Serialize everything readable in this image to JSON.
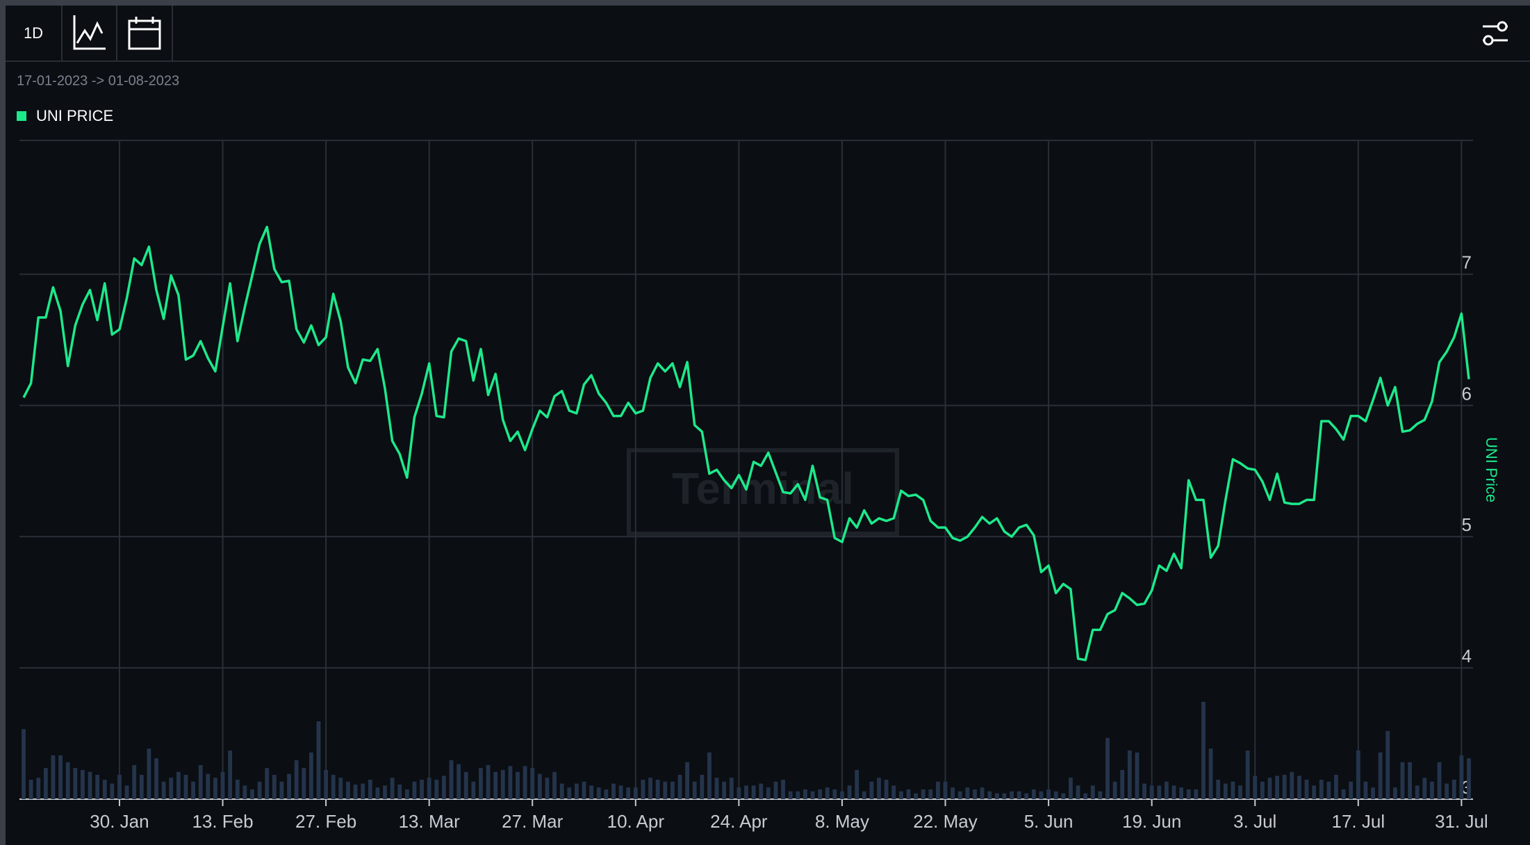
{
  "toolbar": {
    "interval": "1D"
  },
  "date_range": "17-01-2023 -> 01-08-2023",
  "chart_data": {
    "type": "line",
    "watermark": "Terminal",
    "y_axis_label": "UNI Price",
    "grid": true,
    "xlim": [
      "2023-01-17",
      "2023-08-01"
    ],
    "ylim": [
      3,
      8.02
    ],
    "yticks": [
      3,
      4,
      5,
      6,
      7
    ],
    "xticks": [
      {
        "value": "2023-01-30",
        "label": "30. Jan"
      },
      {
        "value": "2023-02-13",
        "label": "13. Feb"
      },
      {
        "value": "2023-02-27",
        "label": "27. Feb"
      },
      {
        "value": "2023-03-13",
        "label": "13. Mar"
      },
      {
        "value": "2023-03-27",
        "label": "27. Mar"
      },
      {
        "value": "2023-04-10",
        "label": "10. Apr"
      },
      {
        "value": "2023-04-24",
        "label": "24. Apr"
      },
      {
        "value": "2023-05-08",
        "label": "8. May"
      },
      {
        "value": "2023-05-22",
        "label": "22. May"
      },
      {
        "value": "2023-06-05",
        "label": "5. Jun"
      },
      {
        "value": "2023-06-19",
        "label": "19. Jun"
      },
      {
        "value": "2023-07-03",
        "label": "3. Jul"
      },
      {
        "value": "2023-07-17",
        "label": "17. Jul"
      },
      {
        "value": "2023-07-31",
        "label": "31. Jul"
      }
    ],
    "x": [
      "2023-01-17",
      "2023-01-18",
      "2023-01-19",
      "2023-01-20",
      "2023-01-21",
      "2023-01-22",
      "2023-01-23",
      "2023-01-24",
      "2023-01-25",
      "2023-01-26",
      "2023-01-27",
      "2023-01-28",
      "2023-01-29",
      "2023-01-30",
      "2023-01-31",
      "2023-02-01",
      "2023-02-02",
      "2023-02-03",
      "2023-02-04",
      "2023-02-05",
      "2023-02-06",
      "2023-02-07",
      "2023-02-08",
      "2023-02-09",
      "2023-02-10",
      "2023-02-11",
      "2023-02-12",
      "2023-02-13",
      "2023-02-14",
      "2023-02-15",
      "2023-02-16",
      "2023-02-17",
      "2023-02-18",
      "2023-02-19",
      "2023-02-20",
      "2023-02-21",
      "2023-02-22",
      "2023-02-23",
      "2023-02-24",
      "2023-02-25",
      "2023-02-26",
      "2023-02-27",
      "2023-02-28",
      "2023-03-01",
      "2023-03-02",
      "2023-03-03",
      "2023-03-04",
      "2023-03-05",
      "2023-03-06",
      "2023-03-07",
      "2023-03-08",
      "2023-03-09",
      "2023-03-10",
      "2023-03-11",
      "2023-03-12",
      "2023-03-13",
      "2023-03-14",
      "2023-03-15",
      "2023-03-16",
      "2023-03-17",
      "2023-03-18",
      "2023-03-19",
      "2023-03-20",
      "2023-03-21",
      "2023-03-22",
      "2023-03-23",
      "2023-03-24",
      "2023-03-25",
      "2023-03-26",
      "2023-03-27",
      "2023-03-28",
      "2023-03-29",
      "2023-03-30",
      "2023-03-31",
      "2023-04-01",
      "2023-04-02",
      "2023-04-03",
      "2023-04-04",
      "2023-04-05",
      "2023-04-06",
      "2023-04-07",
      "2023-04-08",
      "2023-04-09",
      "2023-04-10",
      "2023-04-11",
      "2023-04-12",
      "2023-04-13",
      "2023-04-14",
      "2023-04-15",
      "2023-04-16",
      "2023-04-17",
      "2023-04-18",
      "2023-04-19",
      "2023-04-20",
      "2023-04-21",
      "2023-04-22",
      "2023-04-23",
      "2023-04-24",
      "2023-04-25",
      "2023-04-26",
      "2023-04-27",
      "2023-04-28",
      "2023-04-29",
      "2023-04-30",
      "2023-05-01",
      "2023-05-02",
      "2023-05-03",
      "2023-05-04",
      "2023-05-05",
      "2023-05-06",
      "2023-05-07",
      "2023-05-08",
      "2023-05-09",
      "2023-05-10",
      "2023-05-11",
      "2023-05-12",
      "2023-05-13",
      "2023-05-14",
      "2023-05-15",
      "2023-05-16",
      "2023-05-17",
      "2023-05-18",
      "2023-05-19",
      "2023-05-20",
      "2023-05-21",
      "2023-05-22",
      "2023-05-23",
      "2023-05-24",
      "2023-05-25",
      "2023-05-26",
      "2023-05-27",
      "2023-05-28",
      "2023-05-29",
      "2023-05-30",
      "2023-05-31",
      "2023-06-01",
      "2023-06-02",
      "2023-06-03",
      "2023-06-04",
      "2023-06-05",
      "2023-06-06",
      "2023-06-07",
      "2023-06-08",
      "2023-06-09",
      "2023-06-10",
      "2023-06-11",
      "2023-06-12",
      "2023-06-13",
      "2023-06-14",
      "2023-06-15",
      "2023-06-16",
      "2023-06-17",
      "2023-06-18",
      "2023-06-19",
      "2023-06-20",
      "2023-06-21",
      "2023-06-22",
      "2023-06-23",
      "2023-06-24",
      "2023-06-25",
      "2023-06-26",
      "2023-06-27",
      "2023-06-28",
      "2023-06-29",
      "2023-06-30",
      "2023-07-01",
      "2023-07-02",
      "2023-07-03",
      "2023-07-04",
      "2023-07-05",
      "2023-07-06",
      "2023-07-07",
      "2023-07-08",
      "2023-07-09",
      "2023-07-10",
      "2023-07-11",
      "2023-07-12",
      "2023-07-13",
      "2023-07-14",
      "2023-07-15",
      "2023-07-16",
      "2023-07-17",
      "2023-07-18",
      "2023-07-19",
      "2023-07-20",
      "2023-07-21",
      "2023-07-22",
      "2023-07-23",
      "2023-07-24",
      "2023-07-25",
      "2023-07-26",
      "2023-07-27",
      "2023-07-28",
      "2023-07-29",
      "2023-07-30",
      "2023-07-31",
      "2023-08-01"
    ],
    "series": [
      {
        "name": "UNI PRICE",
        "color": "#1de98b",
        "values": [
          6.06,
          6.17,
          6.67,
          6.67,
          6.9,
          6.72,
          6.3,
          6.61,
          6.77,
          6.88,
          6.65,
          6.93,
          6.54,
          6.58,
          6.82,
          7.12,
          7.07,
          7.21,
          6.88,
          6.66,
          6.99,
          6.84,
          6.35,
          6.38,
          6.49,
          6.36,
          6.26,
          6.6,
          6.93,
          6.49,
          6.75,
          6.99,
          7.23,
          7.36,
          7.04,
          6.94,
          6.95,
          6.58,
          6.48,
          6.61,
          6.46,
          6.52,
          6.85,
          6.64,
          6.29,
          6.17,
          6.35,
          6.34,
          6.43,
          6.13,
          5.73,
          5.63,
          5.45,
          5.91,
          6.09,
          6.32,
          5.92,
          5.91,
          6.41,
          6.51,
          6.49,
          6.19,
          6.43,
          6.08,
          6.24,
          5.89,
          5.73,
          5.8,
          5.66,
          5.82,
          5.96,
          5.91,
          6.07,
          6.11,
          5.96,
          5.94,
          6.16,
          6.23,
          6.09,
          6.02,
          5.92,
          5.92,
          6.02,
          5.94,
          5.96,
          6.21,
          6.32,
          6.26,
          6.32,
          6.14,
          6.33,
          5.85,
          5.8,
          5.48,
          5.51,
          5.43,
          5.37,
          5.47,
          5.36,
          5.57,
          5.54,
          5.64,
          5.49,
          5.34,
          5.33,
          5.4,
          5.28,
          5.54,
          5.3,
          5.28,
          4.99,
          4.96,
          5.14,
          5.07,
          5.2,
          5.1,
          5.14,
          5.12,
          5.14,
          5.35,
          5.31,
          5.32,
          5.28,
          5.12,
          5.07,
          5.07,
          4.99,
          4.97,
          5.0,
          5.07,
          5.15,
          5.1,
          5.14,
          5.04,
          5.0,
          5.07,
          5.09,
          5.01,
          4.73,
          4.78,
          4.57,
          4.64,
          4.6,
          4.07,
          4.06,
          4.29,
          4.29,
          4.41,
          4.44,
          4.57,
          4.53,
          4.48,
          4.49,
          4.59,
          4.78,
          4.74,
          4.87,
          4.76,
          5.43,
          5.28,
          5.28,
          4.84,
          4.93,
          5.28,
          5.59,
          5.56,
          5.52,
          5.51,
          5.42,
          5.28,
          5.48,
          5.26,
          5.25,
          5.25,
          5.28,
          5.28,
          5.88,
          5.88,
          5.82,
          5.74,
          5.92,
          5.92,
          5.88,
          6.04,
          6.21,
          6.0,
          6.14,
          5.8,
          5.81,
          5.86,
          5.89,
          6.03,
          6.33,
          6.41,
          6.52,
          6.7,
          6.2
        ]
      }
    ],
    "volume": {
      "color": "#24344b",
      "values": [
        72,
        20,
        22,
        32,
        45,
        45,
        38,
        32,
        30,
        28,
        25,
        20,
        16,
        25,
        14,
        35,
        25,
        52,
        42,
        18,
        22,
        28,
        25,
        18,
        35,
        26,
        22,
        28,
        50,
        20,
        14,
        10,
        18,
        32,
        25,
        18,
        26,
        40,
        32,
        48,
        80,
        30,
        25,
        22,
        18,
        15,
        16,
        20,
        12,
        14,
        22,
        15,
        10,
        18,
        20,
        22,
        20,
        24,
        40,
        36,
        28,
        18,
        32,
        35,
        28,
        30,
        34,
        28,
        34,
        32,
        26,
        22,
        28,
        16,
        12,
        16,
        18,
        14,
        12,
        10,
        16,
        14,
        12,
        12,
        20,
        22,
        20,
        18,
        18,
        25,
        38,
        18,
        25,
        48,
        22,
        18,
        22,
        12,
        14,
        14,
        16,
        12,
        18,
        20,
        8,
        8,
        10,
        8,
        10,
        12,
        10,
        8,
        14,
        30,
        8,
        18,
        22,
        20,
        14,
        8,
        10,
        6,
        10,
        10,
        18,
        18,
        12,
        8,
        12,
        10,
        12,
        8,
        6,
        6,
        8,
        8,
        6,
        10,
        8,
        10,
        8,
        6,
        22,
        14,
        6,
        14,
        8,
        63,
        18,
        30,
        50,
        48,
        16,
        14,
        14,
        18,
        14,
        12,
        10,
        10,
        100,
        52,
        20,
        16,
        18,
        14,
        50,
        24,
        18,
        22,
        24,
        25,
        28,
        24,
        20,
        14,
        20,
        18,
        25,
        10,
        18,
        50,
        18,
        12,
        48,
        70,
        12,
        38,
        38,
        14,
        22,
        18,
        38,
        16,
        20,
        45,
        42
      ]
    }
  }
}
